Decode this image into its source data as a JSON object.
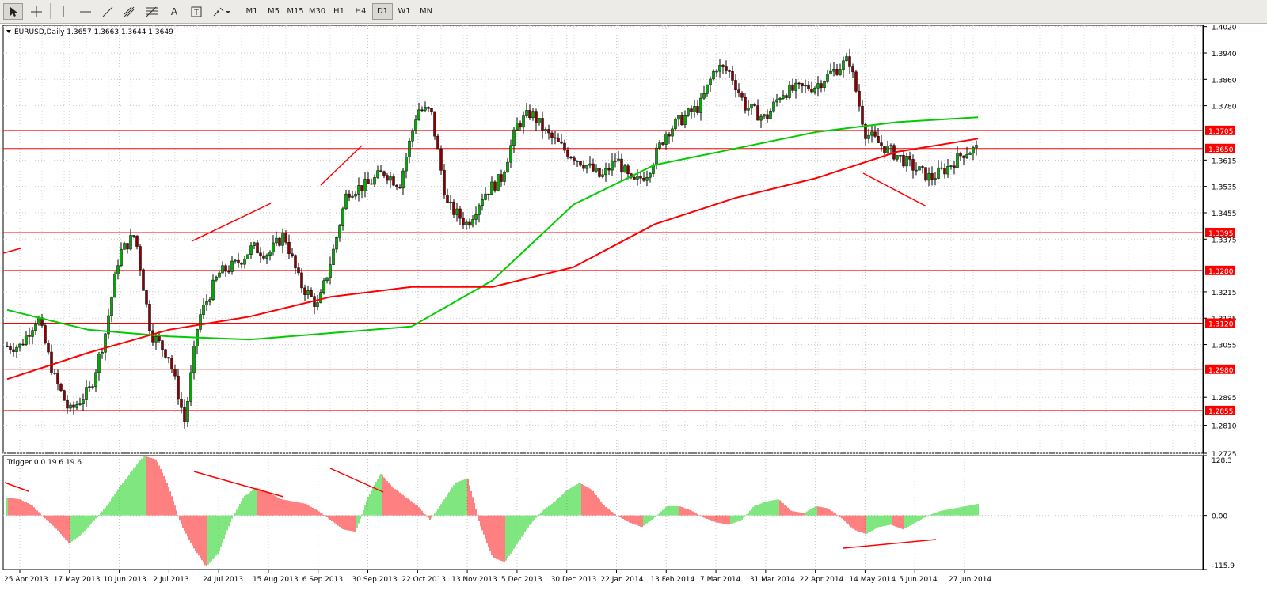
{
  "toolbar": {
    "timeframes": [
      "M1",
      "M5",
      "M15",
      "M30",
      "H1",
      "H4",
      "D1",
      "W1",
      "MN"
    ],
    "active_timeframe": "D1",
    "text_tool_label": "A"
  },
  "chart_data": [
    {
      "type": "candlestick",
      "title": "EURUSD,Daily",
      "ohlc": "1.3657 1.3663 1.3644 1.3649",
      "ylim": [
        1.2725,
        1.4024
      ],
      "y_ticks": [
        "1.4020",
        "1.3940",
        "1.3860",
        "1.3780",
        "1.3615",
        "1.3535",
        "1.3455",
        "1.3375",
        "1.3215",
        "1.3135",
        "1.3055",
        "1.2895",
        "1.2810",
        "1.2725"
      ],
      "x_ticks": [
        "25 Apr 2013",
        "17 May 2013",
        "10 Jun 2013",
        "2 Jul 2013",
        "24 Jul 2013",
        "15 Aug 2013",
        "6 Sep 2013",
        "30 Sep 2013",
        "22 Oct 2013",
        "13 Nov 2013",
        "5 Dec 2013",
        "30 Dec 2013",
        "22 Jan 2014",
        "13 Feb 2014",
        "7 Mar 2014",
        "31 Mar 2014",
        "22 Apr 2014",
        "14 May 2014",
        "5 Jun 2014",
        "27 Jun 2014"
      ],
      "horizontal_levels": [
        "1.3705",
        "1.3650",
        "1.3395",
        "1.3280",
        "1.3120",
        "1.2980",
        "1.2855"
      ],
      "close_points": [
        [
          "25 Apr 2013",
          1.305
        ],
        [
          "3 May 2013",
          1.314
        ],
        [
          "10 May 2013",
          1.296
        ],
        [
          "17 May 2013",
          1.285
        ],
        [
          "27 May 2013",
          1.292
        ],
        [
          "3 Jun 2013",
          1.308
        ],
        [
          "10 Jun 2013",
          1.333
        ],
        [
          "17 Jun 2013",
          1.339
        ],
        [
          "24 Jun 2013",
          1.309
        ],
        [
          "2 Jul 2013",
          1.302
        ],
        [
          "9 Jul 2013",
          1.282
        ],
        [
          "15 Jul 2013",
          1.313
        ],
        [
          "24 Jul 2013",
          1.327
        ],
        [
          "1 Aug 2013",
          1.33
        ],
        [
          "8 Aug 2013",
          1.335
        ],
        [
          "15 Aug 2013",
          1.333
        ],
        [
          "22 Aug 2013",
          1.339
        ],
        [
          "29 Aug 2013",
          1.324
        ],
        [
          "6 Sep 2013",
          1.317
        ],
        [
          "13 Sep 2013",
          1.333
        ],
        [
          "20 Sep 2013",
          1.352
        ],
        [
          "30 Sep 2013",
          1.354
        ],
        [
          "7 Oct 2013",
          1.358
        ],
        [
          "14 Oct 2013",
          1.354
        ],
        [
          "22 Oct 2013",
          1.377
        ],
        [
          "28 Oct 2013",
          1.376
        ],
        [
          "4 Nov 2013",
          1.348
        ],
        [
          "13 Nov 2013",
          1.342
        ],
        [
          "20 Nov 2013",
          1.351
        ],
        [
          "28 Nov 2013",
          1.356
        ],
        [
          "5 Dec 2013",
          1.372
        ],
        [
          "12 Dec 2013",
          1.376
        ],
        [
          "19 Dec 2013",
          1.37
        ],
        [
          "30 Dec 2013",
          1.364
        ],
        [
          "8 Jan 2014",
          1.36
        ],
        [
          "15 Jan 2014",
          1.356
        ],
        [
          "22 Jan 2014",
          1.362
        ],
        [
          "29 Jan 2014",
          1.354
        ],
        [
          "5 Feb 2014",
          1.358
        ],
        [
          "13 Feb 2014",
          1.37
        ],
        [
          "20 Feb 2014",
          1.374
        ],
        [
          "28 Feb 2014",
          1.378
        ],
        [
          "7 Mar 2014",
          1.39
        ],
        [
          "14 Mar 2014",
          1.388
        ],
        [
          "21 Mar 2014",
          1.378
        ],
        [
          "31 Mar 2014",
          1.374
        ],
        [
          "7 Apr 2014",
          1.382
        ],
        [
          "14 Apr 2014",
          1.383
        ],
        [
          "22 Apr 2014",
          1.384
        ],
        [
          "29 Apr 2014",
          1.388
        ],
        [
          "7 May 2014",
          1.392
        ],
        [
          "14 May 2014",
          1.37
        ],
        [
          "21 May 2014",
          1.366
        ],
        [
          "28 May 2014",
          1.363
        ],
        [
          "5 Jun 2014",
          1.359
        ],
        [
          "12 Jun 2014",
          1.356
        ],
        [
          "19 Jun 2014",
          1.359
        ],
        [
          "27 Jun 2014",
          1.364
        ],
        [
          "3 Jul 2014",
          1.3649
        ]
      ],
      "series": [
        {
          "color": "#00cc00",
          "values": [
            1.316,
            1.31,
            1.308,
            1.307,
            1.309,
            1.311,
            1.325,
            1.348,
            1.36,
            1.365,
            1.37,
            1.373,
            1.3745
          ]
        },
        {
          "color": "#ff0000",
          "values": [
            1.295,
            1.303,
            1.31,
            1.314,
            1.32,
            1.323,
            1.323,
            1.329,
            1.342,
            1.35,
            1.356,
            1.364,
            1.368
          ]
        }
      ]
    },
    {
      "type": "bar",
      "title": "Trigger 0.0 19.6 19.6",
      "ylim": [
        -115.9,
        128.3
      ],
      "y_ticks": [
        "128.3",
        "0.00",
        "-115.9"
      ],
      "colors": {
        "positive": "#00cc00",
        "negative": "#ff0000"
      },
      "values": [
        38,
        35,
        22,
        -5,
        -30,
        -60,
        -40,
        -10,
        20,
        60,
        95,
        128,
        120,
        60,
        -20,
        -70,
        -110,
        -80,
        -10,
        40,
        60,
        50,
        35,
        30,
        25,
        10,
        -10,
        -30,
        -35,
        40,
        90,
        60,
        40,
        20,
        -10,
        30,
        70,
        80,
        -20,
        -90,
        -100,
        -60,
        -20,
        10,
        30,
        55,
        70,
        55,
        20,
        0,
        -15,
        -25,
        -5,
        20,
        20,
        10,
        -5,
        -15,
        -20,
        -10,
        20,
        30,
        35,
        10,
        5,
        20,
        15,
        -5,
        -30,
        -40,
        -25,
        -20,
        -30,
        -15,
        0,
        10,
        15,
        20,
        25
      ]
    }
  ]
}
